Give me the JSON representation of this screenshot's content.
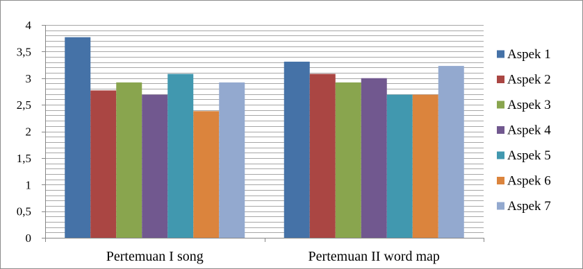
{
  "chart_data": {
    "type": "bar",
    "title": "",
    "xlabel": "",
    "ylabel": "",
    "categories": [
      "Pertemuan I song",
      "Pertemuan II word map"
    ],
    "ylim": [
      0,
      4
    ],
    "y_ticks": [
      "0",
      "0,5",
      "1",
      "1,5",
      "2",
      "2,5",
      "3",
      "3,5",
      "4"
    ],
    "y_tick_values": [
      0,
      0.5,
      1,
      1.5,
      2,
      2.5,
      3,
      3.5,
      4
    ],
    "minor_gridline_step": 0.1,
    "grid": true,
    "legend_position": "right",
    "series": [
      {
        "name": "Aspek 1",
        "color": "#4572a7",
        "values": [
          3.77,
          3.31
        ]
      },
      {
        "name": "Aspek 2",
        "color": "#aa4643",
        "values": [
          2.77,
          3.08
        ]
      },
      {
        "name": "Aspek 3",
        "color": "#89a54e",
        "values": [
          2.92,
          2.92
        ]
      },
      {
        "name": "Aspek 4",
        "color": "#71588f",
        "values": [
          2.69,
          3.0
        ]
      },
      {
        "name": "Aspek 5",
        "color": "#4198af",
        "values": [
          3.08,
          2.69
        ]
      },
      {
        "name": "Aspek 6",
        "color": "#db843d",
        "values": [
          2.38,
          2.69
        ]
      },
      {
        "name": "Aspek 7",
        "color": "#93a9cf",
        "values": [
          2.92,
          3.23
        ]
      }
    ]
  }
}
